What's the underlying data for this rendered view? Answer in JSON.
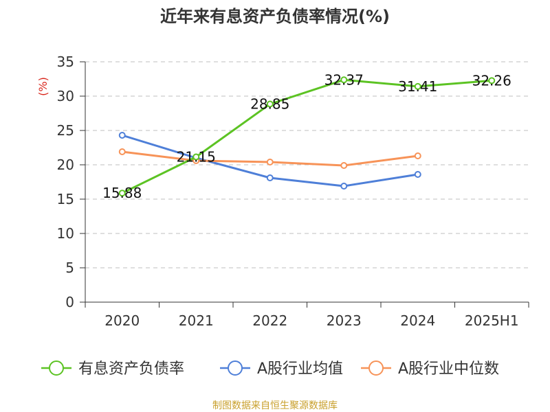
{
  "chart_data": {
    "type": "line",
    "title": "近年来有息资产负债率情况(%)",
    "ylabel": "(%)",
    "xlabel": "",
    "categories": [
      "2020",
      "2021",
      "2022",
      "2023",
      "2024",
      "2025H1"
    ],
    "ylim": [
      0,
      35
    ],
    "yticks": [
      0,
      5,
      10,
      15,
      20,
      25,
      30,
      35
    ],
    "grid": true,
    "legend_position": "bottom",
    "series": [
      {
        "name": "有息资产负债率",
        "color": "#5cc323",
        "values": [
          15.88,
          21.15,
          28.85,
          32.37,
          31.41,
          32.26
        ],
        "data_labels": [
          "15.88",
          "21.15",
          "28.85",
          "32.37",
          "31.41",
          "32.26"
        ]
      },
      {
        "name": "A股行业均值",
        "color": "#4e7fd8",
        "values": [
          24.3,
          21.0,
          18.1,
          16.9,
          18.6,
          null
        ]
      },
      {
        "name": "A股行业中位数",
        "color": "#f79358",
        "values": [
          21.9,
          20.6,
          20.4,
          19.9,
          21.3,
          null
        ]
      }
    ],
    "source": "制图数据来自恒生聚源数据库"
  }
}
